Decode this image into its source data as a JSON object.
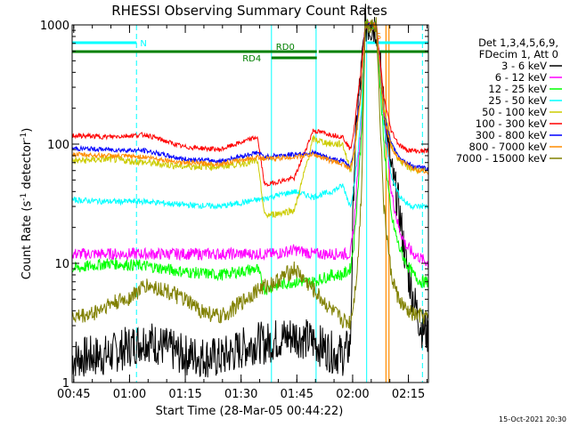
{
  "chart_data": {
    "type": "line",
    "title": "RHESSI Observing Summary Count Rates",
    "xlabel": "Start Time (28-Mar-05 00:44:22)",
    "ylabel_main": "Count Rate (s",
    "ylabel_sup1": "-1",
    "ylabel_mid": " detector",
    "ylabel_sup2": "-1",
    "ylabel_end": ")",
    "ylog": true,
    "ylim": [
      1,
      1000
    ],
    "xlim_minutes": [
      0.2,
      96.0
    ],
    "x_ticks": [
      {
        "min": 0.63,
        "label": "00:45"
      },
      {
        "min": 15.63,
        "label": "01:00"
      },
      {
        "min": 30.63,
        "label": "01:15"
      },
      {
        "min": 45.63,
        "label": "01:30"
      },
      {
        "min": 60.63,
        "label": "01:45"
      },
      {
        "min": 75.63,
        "label": "02:00"
      },
      {
        "min": 90.63,
        "label": "02:15"
      }
    ],
    "y_ticks": [
      {
        "value": 1,
        "label": "1"
      },
      {
        "value": 10,
        "label": "10"
      },
      {
        "value": 100,
        "label": "100"
      },
      {
        "value": 1000,
        "label": "1000"
      }
    ],
    "legend_header": [
      "Det 1,3,4,5,6,9,",
      "FDecim 1, Att 0"
    ],
    "series": [
      {
        "name": "3 - 6 keV",
        "color": "#000000",
        "x": [
          0.2,
          10,
          20,
          30,
          40,
          50,
          52,
          55,
          60,
          65,
          70,
          73,
          75,
          76,
          77,
          78,
          79,
          80,
          82,
          84,
          86,
          88,
          90,
          92,
          94,
          96
        ],
        "y": [
          1.6,
          1.7,
          2.3,
          1.7,
          1.6,
          2.2,
          2.1,
          2.3,
          2.5,
          2.2,
          1.8,
          1.7,
          2.0,
          60,
          200,
          400,
          1000,
          1000,
          1000,
          200,
          60,
          30,
          10,
          5,
          3,
          2.5
        ]
      },
      {
        "name": "6 - 12 keV",
        "color": "#ff00ff",
        "x": [
          0.2,
          10,
          20,
          30,
          40,
          50,
          52,
          55,
          60,
          65,
          70,
          73,
          75,
          76,
          77,
          78,
          79,
          80,
          82,
          84,
          86,
          88,
          90,
          92,
          94,
          96
        ],
        "y": [
          12,
          12,
          12,
          12,
          12,
          12,
          12,
          12,
          13,
          12,
          12,
          12,
          12,
          20,
          60,
          150,
          1000,
          1000,
          1000,
          200,
          40,
          20,
          14,
          12,
          11,
          10
        ]
      },
      {
        "name": "12 - 25 keV",
        "color": "#00ff00",
        "x": [
          0.2,
          10,
          20,
          30,
          40,
          50,
          52,
          55,
          60,
          65,
          70,
          73,
          75,
          76,
          77,
          78,
          79,
          80,
          82,
          84,
          86,
          88,
          90,
          92,
          94,
          96
        ],
        "y": [
          9,
          10,
          9.5,
          8.5,
          8,
          9,
          6,
          6.5,
          7,
          7,
          8,
          8,
          9,
          15,
          40,
          120,
          1000,
          1000,
          1000,
          100,
          25,
          14,
          10,
          8,
          7,
          7
        ]
      },
      {
        "name": "25 - 50 keV",
        "color": "#00ffff",
        "x": [
          0.2,
          10,
          20,
          30,
          40,
          50,
          52,
          55,
          60,
          65,
          70,
          73,
          75,
          76,
          77,
          78,
          79,
          80,
          82,
          84,
          86,
          88,
          90,
          92,
          94,
          96
        ],
        "y": [
          34,
          33,
          33,
          31,
          30,
          34,
          35,
          37,
          40,
          36,
          40,
          45,
          30,
          45,
          80,
          200,
          1000,
          1000,
          1000,
          150,
          55,
          38,
          32,
          30,
          30,
          30
        ]
      },
      {
        "name": "50 - 100 keV",
        "color": "#cccc00",
        "x": [
          0.2,
          10,
          20,
          30,
          40,
          50,
          52,
          55,
          60,
          65,
          70,
          73,
          75,
          76,
          77,
          78,
          79,
          80,
          82,
          84,
          86,
          88,
          90,
          92,
          94,
          96
        ],
        "y": [
          72,
          75,
          70,
          65,
          65,
          72,
          25,
          26,
          28,
          110,
          100,
          100,
          60,
          80,
          150,
          300,
          1000,
          1000,
          1000,
          200,
          100,
          75,
          65,
          62,
          60,
          60
        ]
      },
      {
        "name": "100 - 300 keV",
        "color": "#ff0000",
        "x": [
          0.2,
          10,
          20,
          30,
          40,
          50,
          52,
          55,
          60,
          65,
          70,
          73,
          75,
          76,
          77,
          78,
          79,
          80,
          82,
          84,
          86,
          88,
          90,
          92,
          94,
          96
        ],
        "y": [
          118,
          115,
          120,
          95,
          90,
          115,
          45,
          48,
          52,
          130,
          120,
          115,
          90,
          130,
          250,
          450,
          1000,
          1000,
          1000,
          250,
          130,
          100,
          90,
          88,
          87,
          88
        ]
      },
      {
        "name": "300 - 800 keV",
        "color": "#0000ff",
        "x": [
          0.2,
          10,
          20,
          30,
          40,
          50,
          52,
          55,
          60,
          65,
          70,
          73,
          75,
          76,
          77,
          78,
          79,
          80,
          82,
          84,
          86,
          88,
          90,
          92,
          94,
          96
        ],
        "y": [
          92,
          90,
          88,
          75,
          72,
          85,
          78,
          80,
          82,
          85,
          75,
          72,
          65,
          90,
          170,
          300,
          1000,
          1000,
          1000,
          180,
          100,
          80,
          70,
          65,
          63,
          62
        ]
      },
      {
        "name": "800 - 7000 keV",
        "color": "#ff8c00",
        "x": [
          0.2,
          10,
          20,
          30,
          40,
          50,
          52,
          55,
          60,
          65,
          70,
          73,
          75,
          76,
          77,
          78,
          79,
          80,
          82,
          84,
          86,
          88,
          90,
          92,
          94,
          96
        ],
        "y": [
          82,
          80,
          78,
          70,
          68,
          78,
          75,
          76,
          78,
          82,
          72,
          68,
          62,
          85,
          160,
          280,
          1000,
          1000,
          1000,
          170,
          95,
          75,
          68,
          62,
          60,
          58
        ]
      },
      {
        "name": "7000 - 15000 keV",
        "color": "#808000",
        "x": [
          0.2,
          5,
          10,
          15,
          20,
          25,
          30,
          35,
          40,
          45,
          50,
          55,
          60,
          65,
          70,
          73,
          75,
          76,
          77,
          78,
          79,
          80,
          82,
          84,
          86,
          88,
          90,
          92,
          94,
          96
        ],
        "y": [
          3.5,
          3.7,
          4.5,
          5,
          6.5,
          6,
          5,
          4,
          3.5,
          4.5,
          6,
          7,
          9,
          6,
          4,
          3.3,
          3.2,
          5,
          10,
          40,
          1000,
          1000,
          1000,
          30,
          8,
          5,
          4,
          3.7,
          3.6,
          3.5
        ]
      }
    ],
    "annotations": {
      "n_label": "N",
      "s_label": "S",
      "rd0_label": "RD0",
      "rd4_label": "RD4",
      "timestamp": "15-Oct-2021 20:30"
    },
    "flag_bars": {
      "night": [
        [
          0.2,
          17.5
        ],
        [
          79.6,
          96
        ]
      ],
      "saa": [
        [
          79.6,
          85.5
        ]
      ],
      "rd0": [
        [
          0.2,
          66.0
        ],
        [
          66.5,
          96
        ]
      ],
      "rd4": [
        [
          53.8,
          66.0
        ]
      ]
    },
    "vertical_markers": {
      "cyan_solid": [
        53.8,
        65.8,
        79.4
      ],
      "cyan_dashed": [
        17.5,
        94.4
      ],
      "orange": [
        84.6,
        85.4
      ]
    },
    "colors": {
      "night_bar": "#00ffff",
      "rd_bar": "#008000",
      "saa_marker": "#ff8c00"
    }
  }
}
